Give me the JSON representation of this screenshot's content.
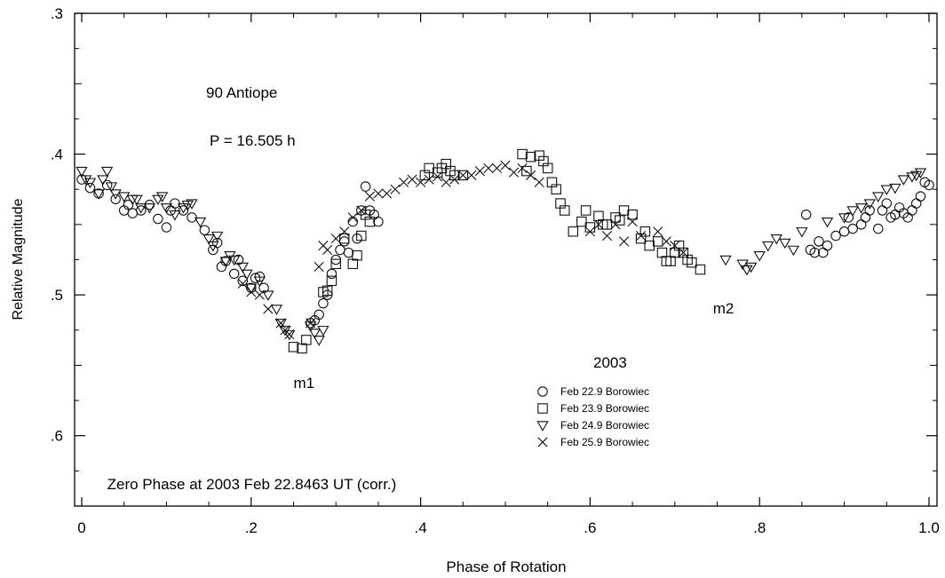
{
  "chart_data": {
    "type": "scatter",
    "title": "90 Antiope",
    "subtitle": "P = 16.505 h",
    "xlabel": "Phase of Rotation",
    "ylabel": "Relative Magnitude",
    "xlim": [
      0,
      1.0
    ],
    "ylim": [
      0.65,
      0.3
    ],
    "y_inverted": true,
    "x_ticks": [
      {
        "value": 0.0,
        "label": "0"
      },
      {
        "value": 0.2,
        "label": ".2"
      },
      {
        "value": 0.4,
        "label": ".4"
      },
      {
        "value": 0.6,
        "label": ".6"
      },
      {
        "value": 0.8,
        "label": ".8"
      },
      {
        "value": 1.0,
        "label": "1.0"
      }
    ],
    "y_ticks": [
      {
        "value": 0.3,
        "label": ".3"
      },
      {
        "value": 0.4,
        "label": ".4"
      },
      {
        "value": 0.5,
        "label": ".5"
      },
      {
        "value": 0.6,
        "label": ".6"
      }
    ],
    "grid": false,
    "legend_title": "2003",
    "legend_position": "lower-center",
    "annotations": [
      {
        "text": "m1",
        "x": 0.25,
        "y": 0.566
      },
      {
        "text": "m2",
        "x": 0.745,
        "y": 0.513
      },
      {
        "text": "Zero Phase at 2003 Feb 22.8463 UT (corr.)",
        "x": 0.03,
        "y": 0.638
      }
    ],
    "series": [
      {
        "name": "Feb 22.9 Borowiec",
        "marker": "circle",
        "x": [
          0.0,
          0.01,
          0.02,
          0.03,
          0.04,
          0.05,
          0.055,
          0.06,
          0.07,
          0.08,
          0.09,
          0.1,
          0.105,
          0.11,
          0.12,
          0.13,
          0.145,
          0.155,
          0.16,
          0.165,
          0.17,
          0.18,
          0.185,
          0.19,
          0.2,
          0.205,
          0.21,
          0.215,
          0.27,
          0.275,
          0.28,
          0.285,
          0.29,
          0.295,
          0.3,
          0.305,
          0.31,
          0.315,
          0.32,
          0.325,
          0.33,
          0.335,
          0.34,
          0.345,
          0.35,
          0.855,
          0.86,
          0.865,
          0.87,
          0.875,
          0.88,
          0.89,
          0.9,
          0.905,
          0.91,
          0.92,
          0.925,
          0.93,
          0.94,
          0.945,
          0.95,
          0.955,
          0.96,
          0.965,
          0.97,
          0.975,
          0.98,
          0.985,
          0.99,
          0.995,
          1.0
        ],
        "y": [
          0.418,
          0.424,
          0.428,
          0.422,
          0.432,
          0.44,
          0.436,
          0.442,
          0.44,
          0.436,
          0.446,
          0.452,
          0.44,
          0.435,
          0.44,
          0.445,
          0.454,
          0.468,
          0.463,
          0.48,
          0.476,
          0.485,
          0.475,
          0.49,
          0.495,
          0.488,
          0.487,
          0.495,
          0.52,
          0.518,
          0.514,
          0.506,
          0.5,
          0.485,
          0.475,
          0.468,
          0.462,
          0.47,
          0.448,
          0.46,
          0.44,
          0.423,
          0.44,
          0.443,
          0.448,
          0.443,
          0.468,
          0.47,
          0.462,
          0.47,
          0.465,
          0.458,
          0.455,
          0.445,
          0.453,
          0.45,
          0.445,
          0.44,
          0.453,
          0.44,
          0.435,
          0.445,
          0.443,
          0.438,
          0.442,
          0.445,
          0.44,
          0.435,
          0.43,
          0.42,
          0.422
        ]
      },
      {
        "name": "Feb 23.9 Borowiec",
        "marker": "square",
        "x": [
          0.25,
          0.26,
          0.265,
          0.285,
          0.29,
          0.295,
          0.3,
          0.31,
          0.32,
          0.325,
          0.33,
          0.335,
          0.34,
          0.405,
          0.41,
          0.42,
          0.425,
          0.43,
          0.435,
          0.44,
          0.45,
          0.52,
          0.525,
          0.53,
          0.54,
          0.545,
          0.55,
          0.555,
          0.56,
          0.565,
          0.57,
          0.58,
          0.59,
          0.595,
          0.6,
          0.61,
          0.615,
          0.62,
          0.63,
          0.635,
          0.64,
          0.65,
          0.66,
          0.665,
          0.67,
          0.68,
          0.685,
          0.69,
          0.695,
          0.7,
          0.705,
          0.71,
          0.715,
          0.72,
          0.73
        ],
        "y": [
          0.537,
          0.538,
          0.532,
          0.498,
          0.497,
          0.49,
          0.478,
          0.46,
          0.478,
          0.472,
          0.458,
          0.443,
          0.448,
          0.415,
          0.41,
          0.413,
          0.41,
          0.407,
          0.412,
          0.415,
          0.415,
          0.4,
          0.412,
          0.402,
          0.401,
          0.405,
          0.41,
          0.42,
          0.425,
          0.435,
          0.44,
          0.455,
          0.448,
          0.44,
          0.452,
          0.444,
          0.45,
          0.45,
          0.445,
          0.447,
          0.44,
          0.443,
          0.46,
          0.455,
          0.465,
          0.462,
          0.47,
          0.476,
          0.476,
          0.47,
          0.465,
          0.47,
          0.475,
          0.477,
          0.482
        ]
      },
      {
        "name": "Feb 24.9 Borowiec",
        "marker": "triangle-down",
        "x": [
          0.0,
          0.005,
          0.01,
          0.02,
          0.025,
          0.03,
          0.035,
          0.04,
          0.05,
          0.06,
          0.065,
          0.07,
          0.08,
          0.09,
          0.095,
          0.1,
          0.11,
          0.12,
          0.125,
          0.13,
          0.14,
          0.15,
          0.155,
          0.16,
          0.17,
          0.175,
          0.18,
          0.19,
          0.195,
          0.2,
          0.21,
          0.22,
          0.23,
          0.235,
          0.24,
          0.245,
          0.27,
          0.275,
          0.28,
          0.285,
          0.76,
          0.78,
          0.785,
          0.79,
          0.8,
          0.81,
          0.82,
          0.83,
          0.84,
          0.85,
          0.88,
          0.9,
          0.91,
          0.92,
          0.93,
          0.94,
          0.95,
          0.96,
          0.97,
          0.98,
          0.985,
          0.99
        ],
        "y": [
          0.412,
          0.418,
          0.42,
          0.428,
          0.418,
          0.412,
          0.423,
          0.428,
          0.43,
          0.432,
          0.432,
          0.438,
          0.438,
          0.432,
          0.43,
          0.438,
          0.443,
          0.438,
          0.436,
          0.435,
          0.448,
          0.46,
          0.465,
          0.458,
          0.476,
          0.472,
          0.475,
          0.48,
          0.485,
          0.495,
          0.49,
          0.5,
          0.51,
          0.52,
          0.525,
          0.528,
          0.522,
          0.527,
          0.532,
          0.525,
          0.475,
          0.478,
          0.482,
          0.48,
          0.472,
          0.465,
          0.46,
          0.463,
          0.468,
          0.455,
          0.448,
          0.445,
          0.44,
          0.438,
          0.435,
          0.43,
          0.425,
          0.424,
          0.418,
          0.416,
          0.415,
          0.413
        ]
      },
      {
        "name": "Feb 25.9 Borowiec",
        "marker": "x",
        "x": [
          0.19,
          0.2,
          0.21,
          0.22,
          0.235,
          0.24,
          0.245,
          0.27,
          0.28,
          0.285,
          0.29,
          0.3,
          0.31,
          0.32,
          0.33,
          0.34,
          0.35,
          0.36,
          0.37,
          0.38,
          0.39,
          0.4,
          0.41,
          0.42,
          0.43,
          0.44,
          0.45,
          0.46,
          0.47,
          0.48,
          0.49,
          0.5,
          0.51,
          0.52,
          0.53,
          0.54,
          0.6,
          0.61,
          0.62,
          0.63,
          0.64,
          0.65,
          0.66,
          0.68,
          0.69,
          0.7,
          0.71
        ],
        "y": [
          0.492,
          0.498,
          0.5,
          0.51,
          0.52,
          0.525,
          0.528,
          0.52,
          0.48,
          0.465,
          0.468,
          0.46,
          0.455,
          0.445,
          0.44,
          0.43,
          0.428,
          0.428,
          0.425,
          0.42,
          0.418,
          0.42,
          0.418,
          0.416,
          0.42,
          0.418,
          0.415,
          0.415,
          0.412,
          0.41,
          0.41,
          0.408,
          0.413,
          0.41,
          0.415,
          0.42,
          0.455,
          0.45,
          0.458,
          0.45,
          0.462,
          0.448,
          0.458,
          0.455,
          0.462,
          0.465,
          0.47
        ]
      }
    ]
  }
}
